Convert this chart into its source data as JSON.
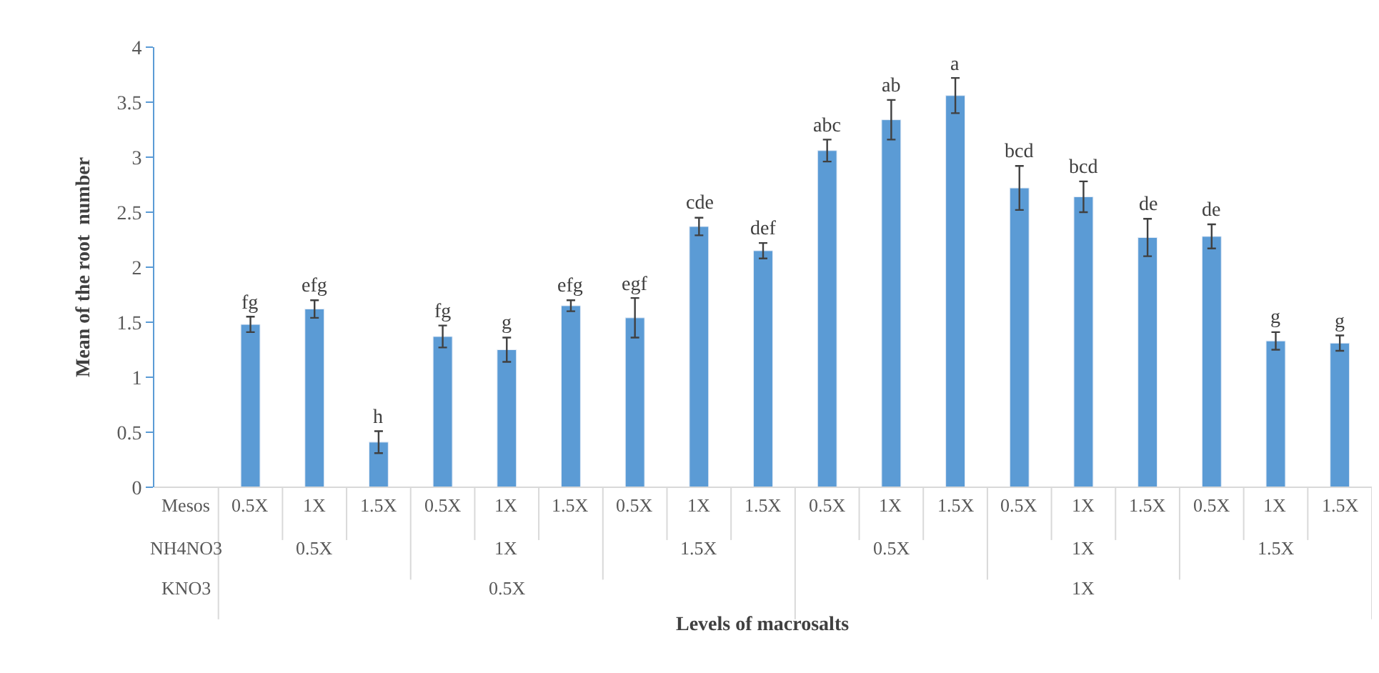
{
  "chart_data": {
    "type": "bar",
    "xlabel": "Levels of macrosalts",
    "ylabel": "Mean of the root  number",
    "categories": [
      "0.5X",
      "1X",
      "1.5X",
      "0.5X",
      "1X",
      "1.5X",
      "0.5X",
      "1X",
      "1.5X",
      "0.5X",
      "1X",
      "1.5X",
      "0.5X",
      "1X",
      "1.5X",
      "0.5X",
      "1X",
      "1.5X"
    ],
    "series": [
      {
        "color": "#5b9bd5",
        "values": [
          1.48,
          1.62,
          0.41,
          1.37,
          1.25,
          1.65,
          1.54,
          2.37,
          2.15,
          3.06,
          3.34,
          3.56,
          2.72,
          2.64,
          2.27,
          2.28,
          1.33,
          1.31
        ],
        "errors": [
          0.07,
          0.08,
          0.1,
          0.1,
          0.11,
          0.05,
          0.18,
          0.08,
          0.07,
          0.1,
          0.18,
          0.16,
          0.2,
          0.14,
          0.17,
          0.11,
          0.08,
          0.07
        ],
        "value_labels": [
          "fg",
          "efg",
          "h",
          "fg",
          "g",
          "efg",
          "egf",
          "cde",
          "def",
          "abc",
          "ab",
          "a",
          "bcd",
          "bcd",
          "de",
          "de",
          "g",
          "g"
        ]
      }
    ],
    "ylim": [
      0,
      4
    ],
    "yticks": [
      0,
      0.5,
      1,
      1.5,
      2,
      2.5,
      3,
      3.5,
      4
    ],
    "annotations": [
      "Mesos",
      "NH4NO3",
      "KNO3",
      "0.5X",
      "1X",
      "1.5X",
      "0.5X",
      "1X",
      "1.5X",
      "0.5X",
      "1X"
    ]
  }
}
